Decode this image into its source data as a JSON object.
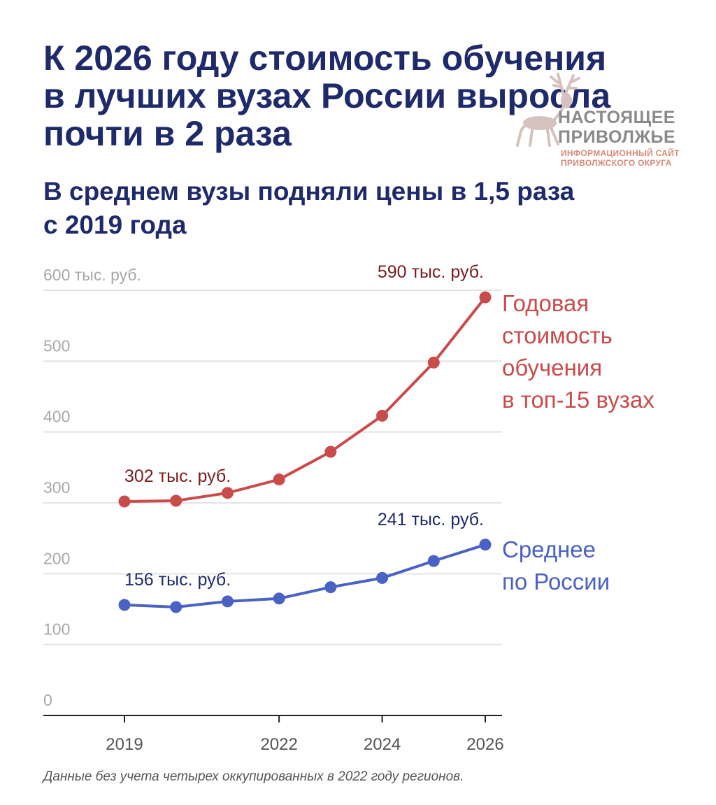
{
  "header": {
    "title_lines": [
      "К 2026 году стоимость обучения",
      "в лучших вузах России выросла",
      "почти в 2 раза"
    ],
    "subtitle_lines": [
      "В среднем вузы подняли цены в 1,5 раза",
      "с 2019 года"
    ]
  },
  "logo": {
    "name_lines": [
      "НАСТОЯЩЕЕ",
      "ПРИВОЛЖЬЕ"
    ],
    "tagline_lines": [
      "ИНФОРМАЦИОННЫЙ САЙТ",
      "ПРИВОЛЖСКОГО ОКРУГА"
    ],
    "icon": "deer-icon"
  },
  "chart_data": {
    "type": "line",
    "x": [
      2019,
      2020,
      2021,
      2022,
      2023,
      2024,
      2025,
      2026
    ],
    "x_tick_labels": [
      "2019",
      "2022",
      "2024",
      "2026"
    ],
    "x_tick_values": [
      2019,
      2022,
      2024,
      2026
    ],
    "ylim": [
      0,
      600
    ],
    "y_ticks": [
      {
        "value": 600,
        "label": "600 тыс. руб."
      },
      {
        "value": 500,
        "label": "500"
      },
      {
        "value": 400,
        "label": "400"
      },
      {
        "value": 300,
        "label": "300"
      },
      {
        "value": 200,
        "label": "200"
      },
      {
        "value": 100,
        "label": "100"
      },
      {
        "value": 0,
        "label": "0"
      }
    ],
    "grid": true,
    "series": [
      {
        "name_lines": [
          "Годовая",
          "стоимость",
          "обучения",
          "в топ-15 вузах"
        ],
        "color": "#c94b4b",
        "label_color": "#7a1c1c",
        "values": [
          302,
          303,
          314,
          333,
          372,
          423,
          498,
          590
        ],
        "annotations": [
          {
            "index": 0,
            "text": "302 тыс. руб."
          },
          {
            "index": 7,
            "text": "590 тыс. руб."
          }
        ]
      },
      {
        "name_lines": [
          "Среднее",
          "по России"
        ],
        "color": "#4a62c4",
        "label_color": "#1f2a6b",
        "values": [
          156,
          153,
          161,
          165,
          181,
          194,
          218,
          241
        ],
        "annotations": [
          {
            "index": 0,
            "text": "156 тыс. руб."
          },
          {
            "index": 7,
            "text": "241 тыс. руб."
          }
        ]
      }
    ]
  },
  "footnote": "Данные без учета четырех оккупированных в 2022 году регионов."
}
